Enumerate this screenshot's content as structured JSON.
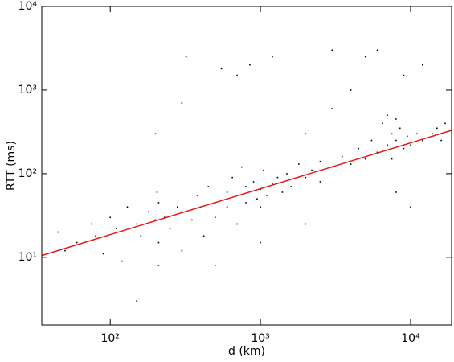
{
  "chart_data": {
    "type": "scatter",
    "xlabel": "d (km)",
    "ylabel": "RTT (ms)",
    "xscale": "log",
    "yscale": "log",
    "xlim": [
      35,
      18750
    ],
    "ylim": [
      1.55,
      10000
    ],
    "xticks": [
      {
        "value": 100,
        "label": "10²"
      },
      {
        "value": 1000,
        "label": "10³"
      },
      {
        "value": 10000,
        "label": "10⁴"
      }
    ],
    "yticks": [
      {
        "value": 10,
        "label": "10¹"
      },
      {
        "value": 100,
        "label": "10²"
      },
      {
        "value": 1000,
        "label": "10³"
      },
      {
        "value": 10000,
        "label": "10⁴"
      }
    ],
    "series": [
      {
        "type": "scatter",
        "color": "#000000",
        "x": [
          45,
          50,
          60,
          75,
          80,
          90,
          100,
          110,
          120,
          130,
          150,
          160,
          180,
          200,
          205,
          210,
          210,
          210,
          230,
          250,
          280,
          300,
          300,
          320,
          350,
          380,
          400,
          420,
          450,
          500,
          500,
          550,
          600,
          600,
          650,
          700,
          700,
          750,
          800,
          800,
          850,
          900,
          950,
          1000,
          1000,
          1050,
          1100,
          1200,
          1200,
          1300,
          1400,
          1500,
          1600,
          1800,
          2000,
          2000,
          2200,
          2500,
          2500,
          3000,
          3000,
          3500,
          4000,
          4000,
          4500,
          5000,
          5000,
          5500,
          6000,
          6000,
          6500,
          7000,
          7000,
          7500,
          7500,
          8000,
          8000,
          8000,
          8500,
          9000,
          9000,
          9500,
          10000,
          10000,
          11000,
          12000,
          12000,
          14000,
          15000,
          16000,
          17000,
          300,
          200,
          150,
          500,
          1000,
          2000,
          700,
          3000
        ],
        "values": [
          20,
          12,
          15,
          25,
          18,
          11,
          30,
          22,
          9,
          40,
          25,
          18,
          35,
          28,
          60,
          15,
          45,
          8,
          30,
          22,
          40,
          35,
          12,
          2500,
          28,
          55,
          40,
          18,
          70,
          45,
          30,
          1800,
          60,
          40,
          90,
          55,
          25,
          120,
          70,
          45,
          2000,
          80,
          50,
          65,
          40,
          110,
          55,
          75,
          2500,
          90,
          60,
          100,
          70,
          130,
          90,
          300,
          110,
          140,
          80,
          120,
          600,
          160,
          130,
          1000,
          200,
          150,
          2500,
          250,
          180,
          3000,
          400,
          220,
          500,
          300,
          150,
          250,
          450,
          60,
          350,
          200,
          1500,
          280,
          220,
          40,
          300,
          250,
          2000,
          300,
          350,
          250,
          400,
          700,
          300,
          3,
          8,
          15,
          25,
          1500,
          3000
        ]
      },
      {
        "type": "line",
        "color": "#e41a1c",
        "x": [
          35,
          18750
        ],
        "values": [
          10.5,
          330
        ]
      }
    ]
  }
}
